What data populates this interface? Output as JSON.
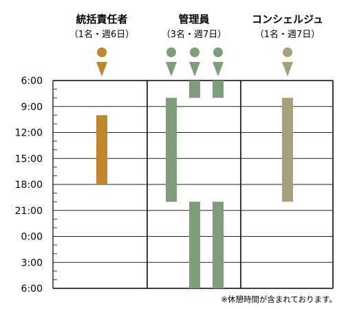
{
  "chart_data": {
    "type": "gantt",
    "y_axis_ticks": [
      "6:00",
      "9:00",
      "12:00",
      "15:00",
      "18:00",
      "21:00",
      "0:00",
      "3:00",
      "6:00"
    ],
    "y_range_hours_from_6am": [
      0,
      24
    ],
    "grid": true,
    "columns": [
      {
        "title": "統括責任者",
        "subtitle": "（1名・週6日）",
        "color": "#c0862a",
        "markers": 1,
        "shifts": [
          {
            "start": "10:00",
            "end": "18:00"
          }
        ]
      },
      {
        "title": "管理員",
        "subtitle": "（3名・週7日）",
        "color": "#7f9c7b",
        "markers": 3,
        "shifts": [
          {
            "lane": 1,
            "start": "8:00",
            "end": "20:00"
          },
          {
            "lane": 2,
            "start": "6:00",
            "end": "8:00"
          },
          {
            "lane": 2,
            "start": "20:00",
            "end": "6:00"
          },
          {
            "lane": 3,
            "start": "6:00",
            "end": "8:00"
          },
          {
            "lane": 3,
            "start": "20:00",
            "end": "6:00"
          }
        ]
      },
      {
        "title": "コンシェルジュ",
        "subtitle": "（1名・週7日）",
        "color": "#a59f7d",
        "markers": 1,
        "shifts": [
          {
            "start": "8:00",
            "end": "20:00"
          }
        ]
      }
    ],
    "footnote": "※休憩時間が含まれております。"
  }
}
